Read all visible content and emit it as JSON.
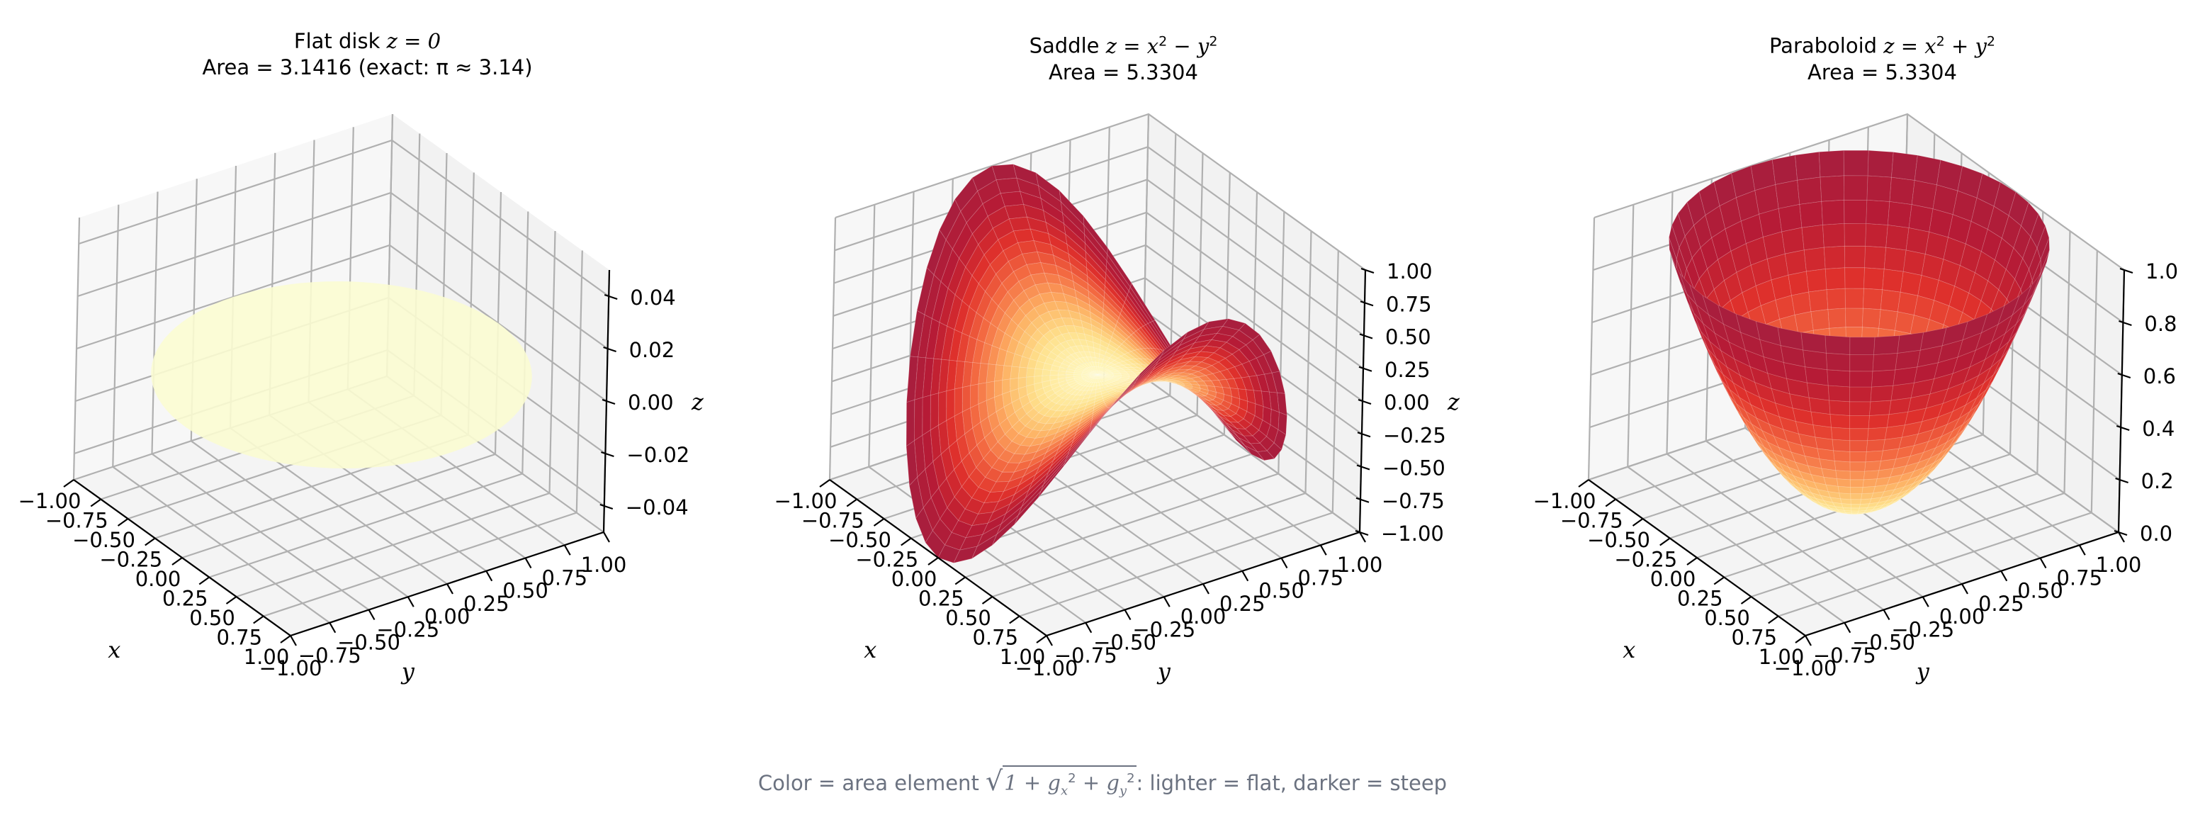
{
  "figure": {
    "footer": {
      "prefix": "Color = area element ",
      "formula_radicand": "1 + g",
      "formula_sub_x": "x",
      "formula_sub_y": "y",
      "formula_sup": "2",
      "suffix": ": lighter = flat, darker = steep",
      "color": "#6b7280"
    },
    "colormap": "YlOrRd",
    "colors": {
      "pane_left": "#f7f7f7",
      "pane_right": "#f2f2f2",
      "pane_floor": "#f4f4f4",
      "grid": "#b0b0b0",
      "flat_disk": "#fbfcd2",
      "steep": "#a51f3f",
      "mid": "#f0613c",
      "light": "#fff2b0"
    }
  },
  "panels": [
    {
      "title_prefix": "Flat disk ",
      "title_math": "z = 0",
      "area_line": "Area = 3.1416 (exact: π ≈ 3.14)",
      "surface": "flat",
      "zlabel": "z",
      "xlabel": "x",
      "ylabel": "y",
      "zticks": [
        "−0.04",
        "−0.02",
        "0.00",
        "0.02",
        "0.04"
      ],
      "zrange": [
        -0.05,
        0.05
      ],
      "xticks": [
        "−1.00",
        "−0.75",
        "−0.50",
        "−0.25",
        "0.00",
        "0.25",
        "0.50",
        "0.75",
        "1.00"
      ],
      "yticks": [
        "−1.00",
        "−0.75",
        "−0.50",
        "−0.25",
        "0.00",
        "0.25",
        "0.50",
        "0.75",
        "1.00"
      ]
    },
    {
      "title_prefix": "Saddle ",
      "title_math_parts": [
        "z = x",
        "2",
        " − y",
        "2"
      ],
      "area_line": "Area = 5.3304",
      "surface": "saddle",
      "zlabel": "z",
      "xlabel": "x",
      "ylabel": "y",
      "zticks": [
        "−1.00",
        "−0.75",
        "−0.50",
        "−0.25",
        "0.00",
        "0.25",
        "0.50",
        "0.75",
        "1.00"
      ],
      "zrange": [
        -1.0,
        1.0
      ],
      "xticks": [
        "−1.00",
        "−0.75",
        "−0.50",
        "−0.25",
        "0.00",
        "0.25",
        "0.50",
        "0.75",
        "1.00"
      ],
      "yticks": [
        "−1.00",
        "−0.75",
        "−0.50",
        "−0.25",
        "0.00",
        "0.25",
        "0.50",
        "0.75",
        "1.00"
      ]
    },
    {
      "title_prefix": "Paraboloid ",
      "title_math_parts": [
        "z = x",
        "2",
        " + y",
        "2"
      ],
      "area_line": "Area = 5.3304",
      "surface": "paraboloid",
      "zlabel": "z",
      "xlabel": "x",
      "ylabel": "y",
      "zticks": [
        "0.0",
        "0.2",
        "0.4",
        "0.6",
        "0.8",
        "1.0"
      ],
      "zrange": [
        0.0,
        1.0
      ],
      "xticks": [
        "−1.00",
        "−0.75",
        "−0.50",
        "−0.25",
        "0.00",
        "0.25",
        "0.50",
        "0.75",
        "1.00"
      ],
      "yticks": [
        "−1.00",
        "−0.75",
        "−0.50",
        "−0.25",
        "0.00",
        "0.25",
        "0.50",
        "0.75",
        "1.00"
      ]
    }
  ],
  "chart_data": [
    {
      "type": "surface3d",
      "title": "Flat disk z = 0",
      "subtitle": "Area = 3.1416 (exact: π ≈ 3.14)",
      "function": "z = 0",
      "domain": "unit disk x^2 + y^2 <= 1",
      "area": 3.1416,
      "exact_area": 3.14,
      "xlabel": "x",
      "ylabel": "y",
      "zlabel": "z",
      "xlim": [
        -1.0,
        1.0
      ],
      "ylim": [
        -1.0,
        1.0
      ],
      "zlim": [
        -0.05,
        0.05
      ],
      "xticks": [
        -1.0,
        -0.75,
        -0.5,
        -0.25,
        0.0,
        0.25,
        0.5,
        0.75,
        1.0
      ],
      "yticks": [
        -1.0,
        -0.75,
        -0.5,
        -0.25,
        0.0,
        0.25,
        0.5,
        0.75,
        1.0
      ],
      "zticks": [
        -0.04,
        -0.02,
        0.0,
        0.02,
        0.04
      ],
      "grid": true
    },
    {
      "type": "surface3d",
      "title": "Saddle z = x^2 − y^2",
      "subtitle": "Area = 5.3304",
      "function": "z = x^2 - y^2",
      "domain": "unit disk x^2 + y^2 <= 1",
      "area": 5.3304,
      "xlabel": "x",
      "ylabel": "y",
      "zlabel": "z",
      "xlim": [
        -1.0,
        1.0
      ],
      "ylim": [
        -1.0,
        1.0
      ],
      "zlim": [
        -1.0,
        1.0
      ],
      "xticks": [
        -1.0,
        -0.75,
        -0.5,
        -0.25,
        0.0,
        0.25,
        0.5,
        0.75,
        1.0
      ],
      "yticks": [
        -1.0,
        -0.75,
        -0.5,
        -0.25,
        0.0,
        0.25,
        0.5,
        0.75,
        1.0
      ],
      "zticks": [
        -1.0,
        -0.75,
        -0.5,
        -0.25,
        0.0,
        0.25,
        0.5,
        0.75,
        1.0
      ],
      "grid": true
    },
    {
      "type": "surface3d",
      "title": "Paraboloid z = x^2 + y^2",
      "subtitle": "Area = 5.3304",
      "function": "z = x^2 + y^2",
      "domain": "unit disk x^2 + y^2 <= 1",
      "area": 5.3304,
      "xlabel": "x",
      "ylabel": "y",
      "zlabel": "z",
      "xlim": [
        -1.0,
        1.0
      ],
      "ylim": [
        -1.0,
        1.0
      ],
      "zlim": [
        0.0,
        1.0
      ],
      "xticks": [
        -1.0,
        -0.75,
        -0.5,
        -0.25,
        0.0,
        0.25,
        0.5,
        0.75,
        1.0
      ],
      "yticks": [
        -1.0,
        -0.75,
        -0.5,
        -0.25,
        0.0,
        0.25,
        0.5,
        0.75,
        1.0
      ],
      "zticks": [
        0.0,
        0.2,
        0.4,
        0.6,
        0.8,
        1.0
      ],
      "grid": true
    }
  ],
  "caption": "Color = area element sqrt(1 + g_x^2 + g_y^2): lighter = flat, darker = steep"
}
